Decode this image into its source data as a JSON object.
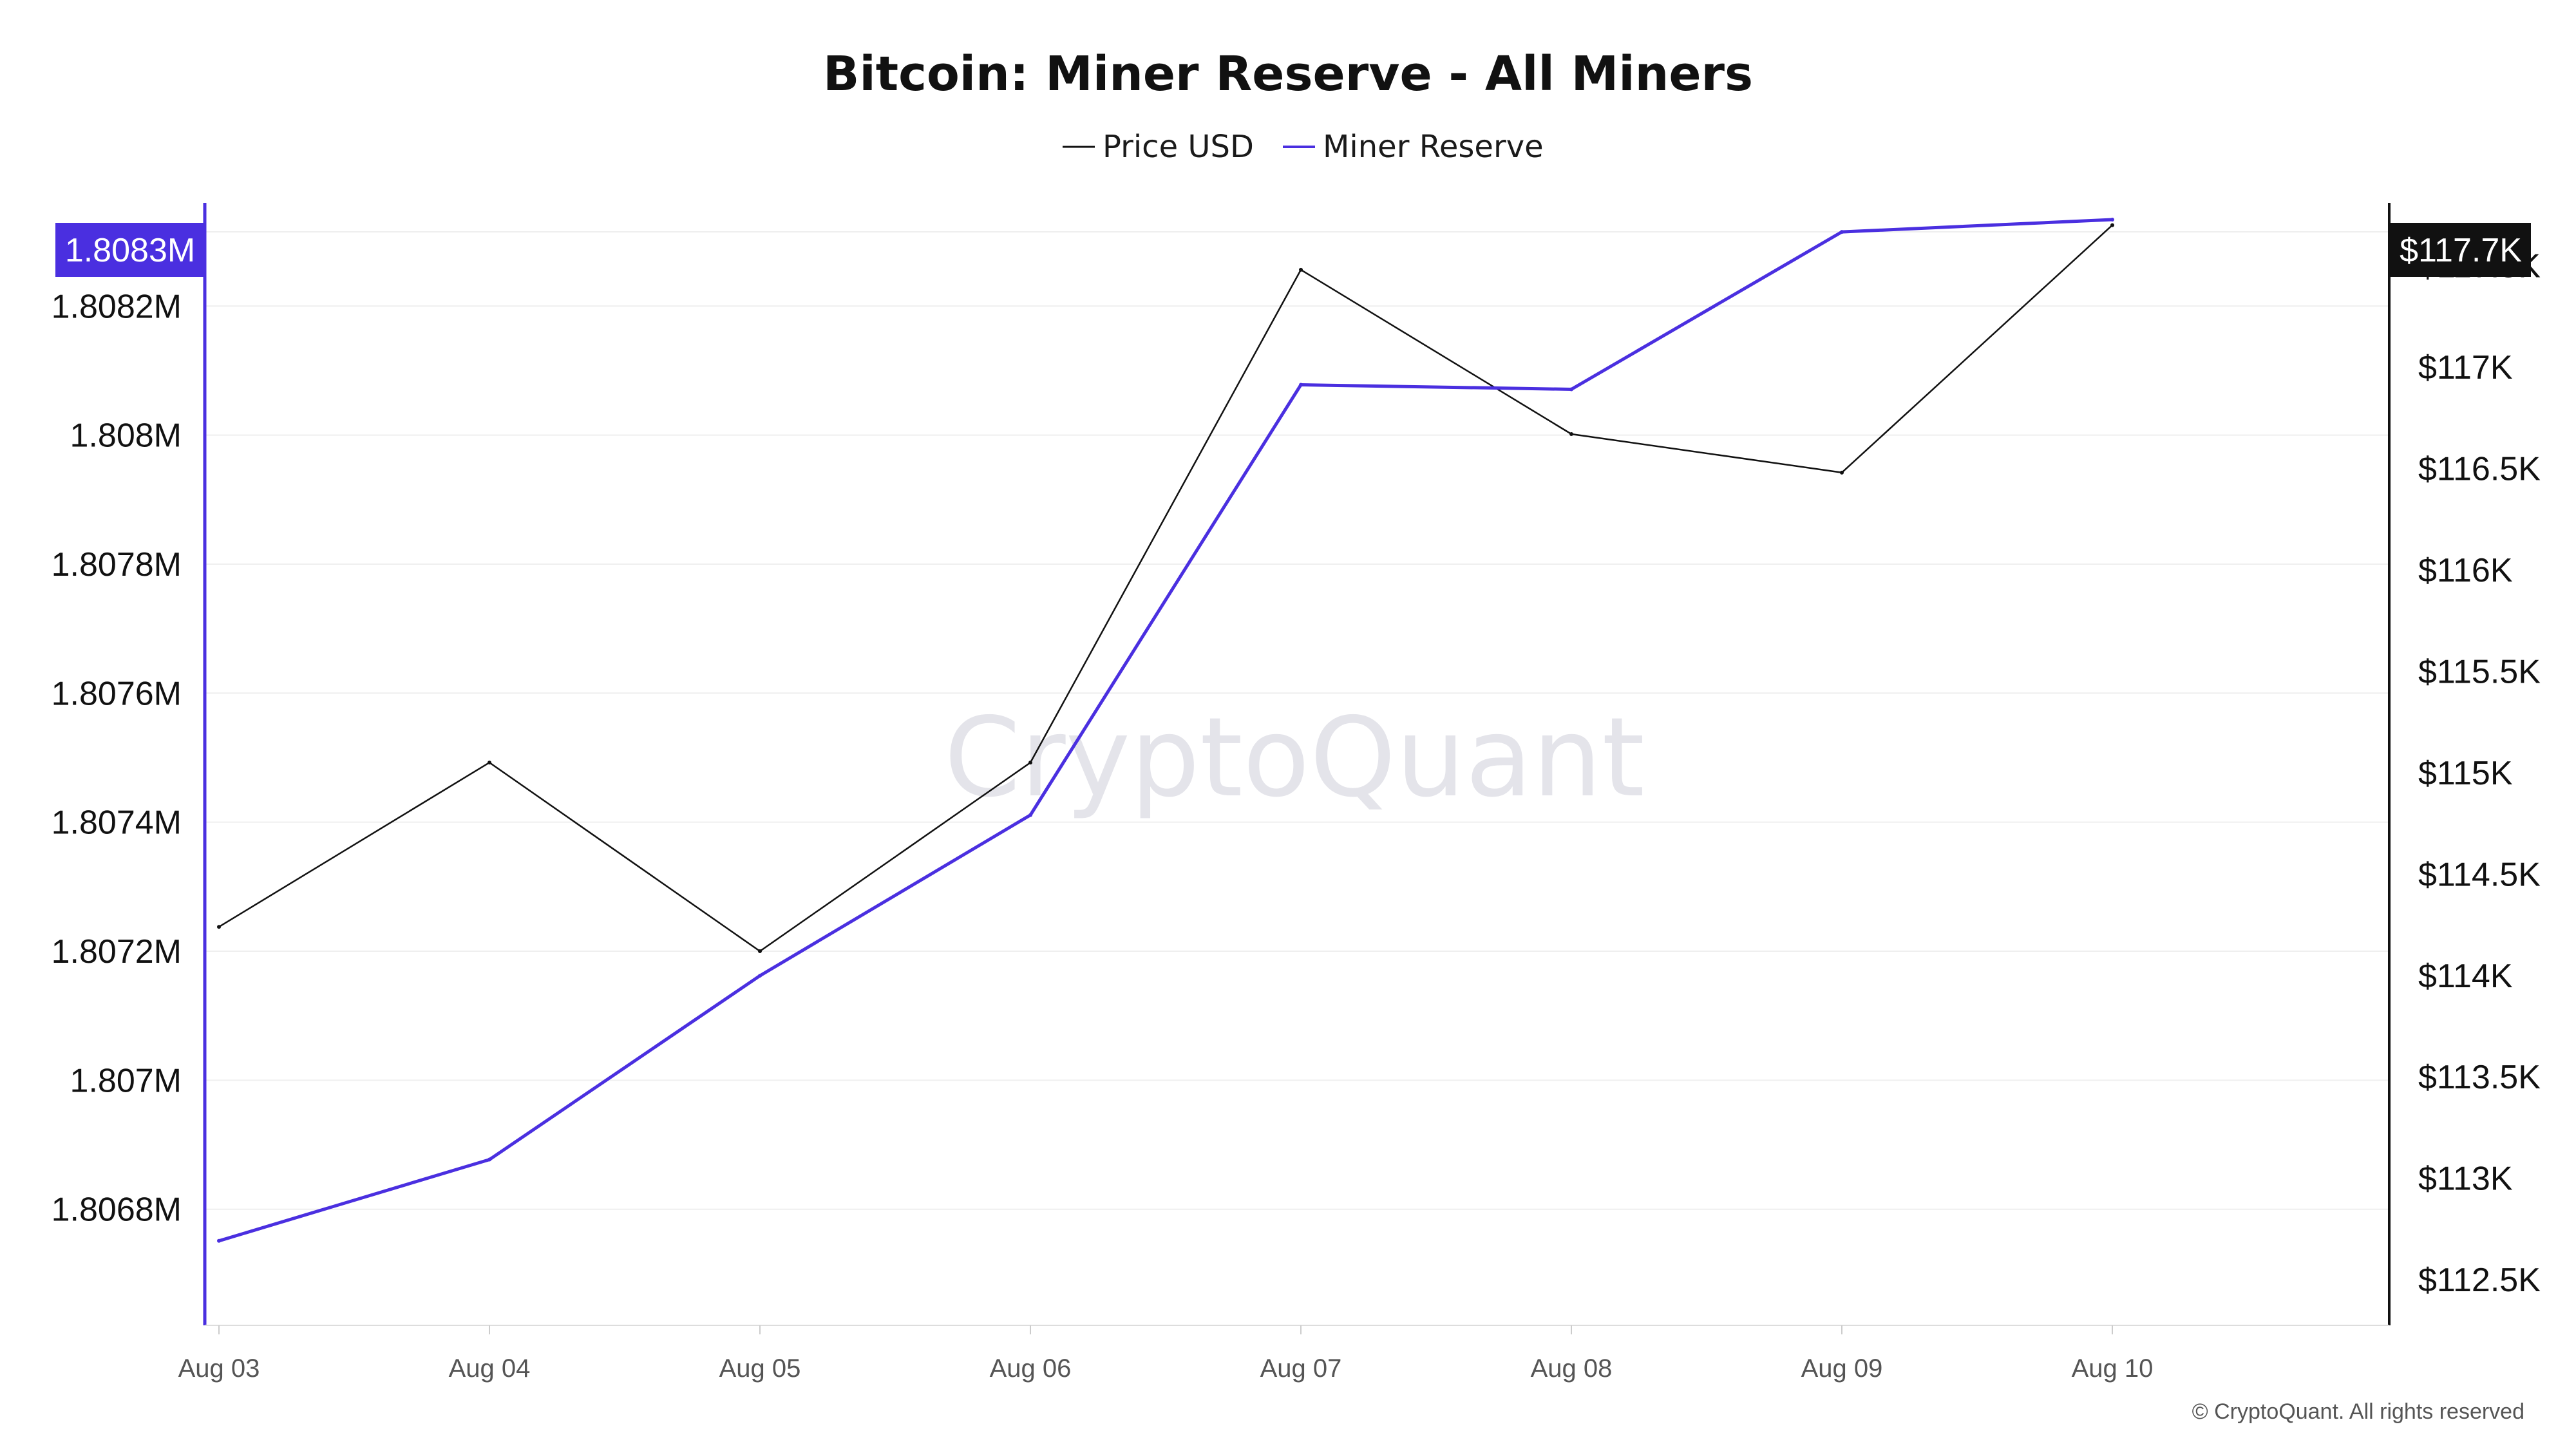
{
  "chart_data": {
    "type": "line",
    "title": "Bitcoin: Miner Reserve - All Miners",
    "categories": [
      "Aug 03",
      "Aug 04",
      "Aug 05",
      "Aug 06",
      "Aug 07",
      "Aug 08",
      "Aug 09",
      "Aug 10"
    ],
    "series": [
      {
        "name": "Price USD",
        "axis": "right",
        "color": "#111111",
        "values": [
          114240,
          115050,
          114120,
          115050,
          117480,
          116670,
          116480,
          117700
        ]
      },
      {
        "name": "Miner Reserve",
        "axis": "left",
        "color": "#4a2fe0",
        "values": [
          1806751,
          1806877,
          1807162,
          1807411,
          1808078,
          1808071,
          1808315,
          1808334
        ]
      }
    ],
    "left_axis": {
      "ylim": [
        1806620,
        1808360
      ],
      "ticks": [
        1806800,
        1807000,
        1807200,
        1807400,
        1807600,
        1807800,
        1808000,
        1808200
      ],
      "tick_labels": [
        "1.8068M",
        "1.807M",
        "1.8072M",
        "1.8074M",
        "1.8076M",
        "1.8078M",
        "1.808M",
        "1.8082M"
      ],
      "current_label": "1.8083M",
      "color": "#4a2fe0"
    },
    "right_axis": {
      "ylim": [
        112275,
        117810
      ],
      "ticks": [
        112500,
        113000,
        113500,
        114000,
        114500,
        115000,
        115500,
        116000,
        116500,
        117000,
        117500
      ],
      "tick_labels": [
        "$112.5K",
        "$113K",
        "$113.5K",
        "$114K",
        "$114.5K",
        "$115K",
        "$115.5K",
        "$116K",
        "$116.5K",
        "$117K",
        "$117.5K"
      ],
      "current_label": "$117.7K",
      "color": "#111111"
    },
    "grid": true,
    "legend_position": "top-center"
  },
  "watermark": "CryptoQuant",
  "copyright": "© CryptoQuant. All rights reserved"
}
